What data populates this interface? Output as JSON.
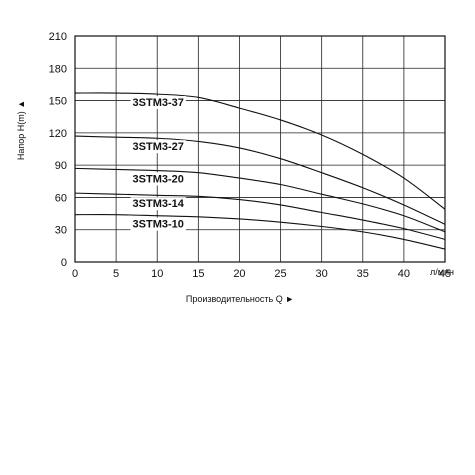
{
  "chart_data": {
    "type": "line",
    "title": "",
    "xlabel": "Производительность Q ►",
    "ylabel": "Напор H(m) ▲",
    "x_unit": "л/мин",
    "xlim": [
      0,
      45
    ],
    "ylim": [
      0,
      210
    ],
    "x_ticks": [
      "0",
      "5",
      "10",
      "15",
      "20",
      "25",
      "30",
      "35",
      "40",
      "45"
    ],
    "y_ticks": [
      "0",
      "30",
      "60",
      "90",
      "120",
      "150",
      "180",
      "210"
    ],
    "grid": true,
    "x": [
      0,
      5,
      10,
      15,
      20,
      25,
      30,
      35,
      40,
      45
    ],
    "series": [
      {
        "name": "3STM3-37",
        "values": [
          157,
          157,
          156,
          153,
          143,
          132,
          118,
          100,
          78,
          49
        ]
      },
      {
        "name": "3STM3-27",
        "values": [
          117,
          116,
          115,
          112,
          106,
          96,
          83,
          69,
          53,
          35
        ]
      },
      {
        "name": "3STM3-20",
        "values": [
          87,
          86,
          85,
          83,
          78,
          72,
          63,
          54,
          43,
          28
        ]
      },
      {
        "name": "3STM3-14",
        "values": [
          64,
          63,
          62,
          61,
          58,
          53,
          46,
          39,
          31,
          21
        ]
      },
      {
        "name": "3STM3-10",
        "values": [
          44,
          44,
          43,
          42,
          40,
          37,
          33,
          28,
          21,
          12
        ]
      }
    ]
  }
}
